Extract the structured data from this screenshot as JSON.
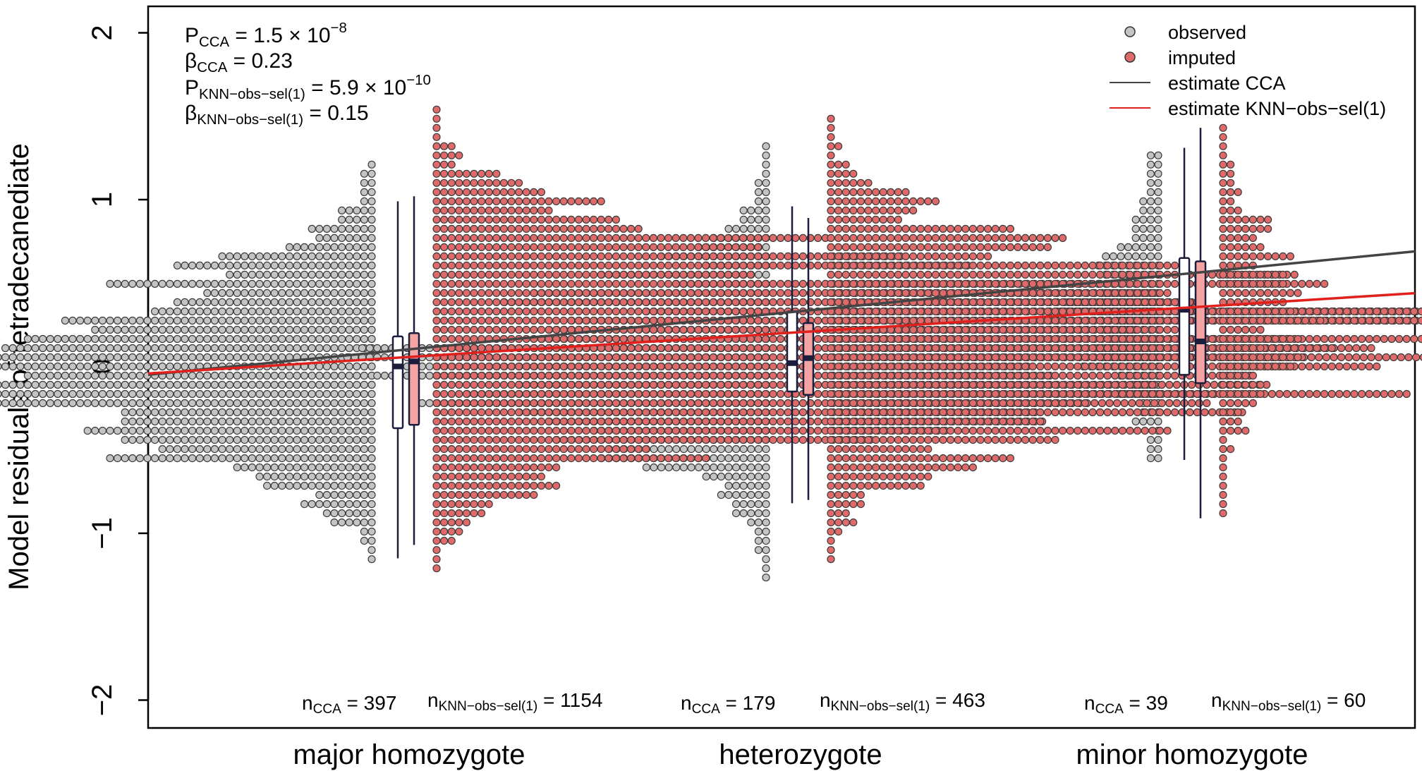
{
  "chart_data": {
    "type": "scatter",
    "ylabel": "Model residuals of tetradecanediate",
    "ylim": [
      -2.2,
      2.2
    ],
    "yticks": [
      -2,
      -1,
      0,
      1,
      2
    ],
    "ytick_labels": [
      "−2",
      "−1",
      "0",
      "1",
      "2"
    ],
    "categories": [
      "major homozygote",
      "heterozygote",
      "minor homozygote"
    ],
    "legend": {
      "placement": "top-right",
      "observed": "observed",
      "imputed": "imputed",
      "cca": "estimate CCA",
      "knn": "estimate KNN−obs−sel(1)"
    },
    "stats": {
      "p_cca": {
        "main": "P",
        "sub": "CCA",
        "eq": " = 1.5 × 10",
        "sup": "−8"
      },
      "beta_cca": {
        "main": "β",
        "sub": "CCA",
        "eq": " = 0.23"
      },
      "p_knn": {
        "main": "P",
        "sub": "KNN−obs−sel(1)",
        "eq": " = 5.9 × 10",
        "sup": "−10"
      },
      "beta_knn": {
        "main": "β",
        "sub": "KNN−obs−sel(1)",
        "eq": " = 0.15"
      }
    },
    "counts": [
      {
        "cca": {
          "main": "n",
          "sub": "CCA",
          "eq": " = 397"
        },
        "knn": {
          "main": "n",
          "sub": "KNN−obs−sel(1)",
          "eq": " = 1154"
        }
      },
      {
        "cca": {
          "main": "n",
          "sub": "CCA",
          "eq": " = 179"
        },
        "knn": {
          "main": "n",
          "sub": "KNN−obs−sel(1)",
          "eq": " = 463"
        }
      },
      {
        "cca": {
          "main": "n",
          "sub": "CCA",
          "eq": " = 39"
        },
        "knn": {
          "main": "n",
          "sub": "KNN−obs−sel(1)",
          "eq": " = 60"
        }
      }
    ],
    "boxplots": {
      "observed": [
        {
          "whisker_low": -1.15,
          "q1": -0.37,
          "median": 0.0,
          "q3": 0.18,
          "whisker_high": 0.99
        },
        {
          "whisker_low": -0.82,
          "q1": -0.15,
          "median": 0.02,
          "q3": 0.33,
          "whisker_high": 0.96
        },
        {
          "whisker_low": -0.56,
          "q1": -0.05,
          "median": 0.34,
          "q3": 0.65,
          "whisker_high": 1.31
        }
      ],
      "imputed": [
        {
          "whisker_low": -1.07,
          "q1": -0.35,
          "median": 0.03,
          "q3": 0.2,
          "whisker_high": 1.02
        },
        {
          "whisker_low": -0.8,
          "q1": -0.17,
          "median": 0.05,
          "q3": 0.26,
          "whisker_high": 0.89
        },
        {
          "whisker_low": -0.91,
          "q1": -0.1,
          "median": 0.15,
          "q3": 0.63,
          "whisker_high": 1.43
        }
      ]
    },
    "regression": {
      "cca": {
        "intercept": -0.13,
        "slope": 0.23
      },
      "knn": {
        "intercept": -0.095,
        "slope": 0.15
      }
    },
    "distributions": {
      "observed": [
        {
          "mean": -0.03,
          "sd": 0.42,
          "peak": 0.0,
          "max_count": 60,
          "y_min": -1.2,
          "y_max": 1.23
        },
        {
          "mean": 0.05,
          "sd": 0.42,
          "peak": 0.0,
          "max_count": 40,
          "y_min": -1.3,
          "y_max": 1.39
        },
        {
          "mean": 0.2,
          "sd": 0.45,
          "peak": 0.35,
          "max_count": 10,
          "y_min": -0.55,
          "y_max": 1.29
        }
      ],
      "imputed": [
        {
          "mean": 0.05,
          "sd": 0.42,
          "peak": 0.15,
          "max_count": 120,
          "y_min": -1.3,
          "y_max": 1.63
        },
        {
          "mean": 0.05,
          "sd": 0.42,
          "peak": 0.15,
          "max_count": 75,
          "y_min": -1.18,
          "y_max": 1.53
        },
        {
          "mean": 0.2,
          "sd": 0.45,
          "peak": 0.35,
          "max_count": 10,
          "y_min": -0.9,
          "y_max": 1.46
        }
      ]
    },
    "colors": {
      "observed_fill": "#c4c4c4",
      "imputed_fill": "#e06a6a",
      "box_observed_fill": "#ffffff",
      "box_imputed_fill": "#f5a3a3",
      "box_border": "#1c1c3c",
      "cca_line": "#444444",
      "knn_line": "#e0201c"
    }
  }
}
